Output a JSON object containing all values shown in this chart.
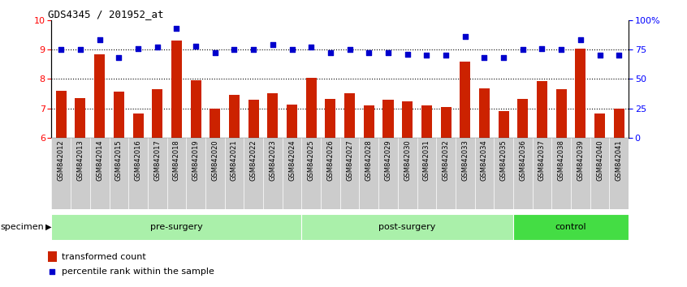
{
  "title": "GDS4345 / 201952_at",
  "samples": [
    "GSM842012",
    "GSM842013",
    "GSM842014",
    "GSM842015",
    "GSM842016",
    "GSM842017",
    "GSM842018",
    "GSM842019",
    "GSM842020",
    "GSM842021",
    "GSM842022",
    "GSM842023",
    "GSM842024",
    "GSM842025",
    "GSM842026",
    "GSM842027",
    "GSM842028",
    "GSM842029",
    "GSM842030",
    "GSM842031",
    "GSM842032",
    "GSM842033",
    "GSM842034",
    "GSM842035",
    "GSM842036",
    "GSM842037",
    "GSM842038",
    "GSM842039",
    "GSM842040",
    "GSM842041"
  ],
  "bar_values": [
    7.6,
    7.35,
    8.85,
    7.58,
    6.82,
    7.65,
    9.3,
    7.95,
    7.0,
    7.45,
    7.28,
    7.5,
    7.12,
    8.05,
    7.32,
    7.5,
    7.1,
    7.3,
    7.25,
    7.1,
    7.05,
    8.58,
    7.68,
    6.92,
    7.32,
    7.92,
    7.65,
    9.02,
    6.82,
    6.98
  ],
  "blue_values_pct": [
    75,
    75,
    83,
    68,
    76,
    77,
    93,
    78,
    72,
    75,
    75,
    79,
    75,
    77,
    72,
    75,
    72,
    72,
    71,
    70,
    70,
    86,
    68,
    68,
    75,
    76,
    75,
    83,
    70,
    70
  ],
  "group_boundaries": [
    0,
    13,
    24,
    30
  ],
  "group_labels": [
    "pre-surgery",
    "post-surgery",
    "control"
  ],
  "group_colors": [
    "#aaf0aa",
    "#aaf0aa",
    "#44dd44"
  ],
  "bar_color": "#cc2200",
  "blue_color": "#0000cc",
  "ylim_left": [
    6,
    10
  ],
  "ylim_right": [
    0,
    100
  ],
  "yticks_left": [
    6,
    7,
    8,
    9,
    10
  ],
  "yticks_right": [
    0,
    25,
    50,
    75,
    100
  ],
  "ytick_labels_right": [
    "0",
    "25",
    "50",
    "75",
    "100%"
  ],
  "grid_values": [
    7,
    8,
    9
  ],
  "legend_labels": [
    "transformed count",
    "percentile rank within the sample"
  ],
  "specimen_label": "specimen",
  "background_color": "#ffffff",
  "tick_bg_color": "#cccccc"
}
